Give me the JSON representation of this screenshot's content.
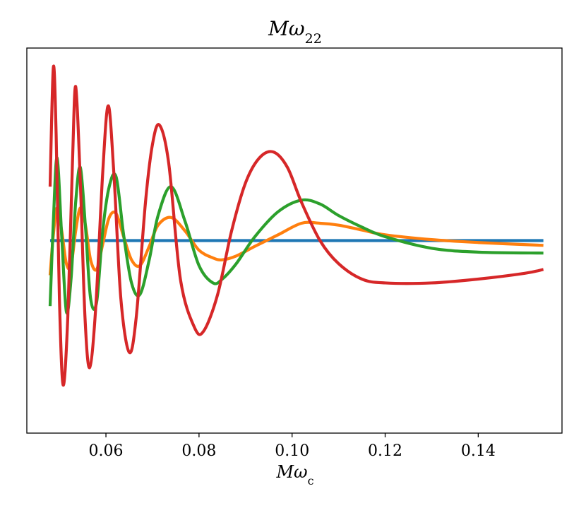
{
  "chart_data": {
    "type": "line",
    "title": "Mω",
    "title_subscript": "22",
    "xlabel": "Mω",
    "xlabel_subscript": "c",
    "ylabel": "",
    "xlim": [
      0.043,
      0.158
    ],
    "ylim": [
      -1.0,
      1.0
    ],
    "grid": false,
    "legend": "none",
    "x_ticks": [
      {
        "value": 0.06,
        "label": "0.06"
      },
      {
        "value": 0.08,
        "label": "0.08"
      },
      {
        "value": 0.1,
        "label": "0.10"
      },
      {
        "value": 0.12,
        "label": "0.12"
      },
      {
        "value": 0.14,
        "label": "0.14"
      }
    ],
    "series": [
      {
        "color": "#1f77b4",
        "points": [
          [
            0.048,
            0.0
          ],
          [
            0.154,
            0.0
          ]
        ]
      },
      {
        "color": "#ff7f0e",
        "points": [
          [
            0.048,
            -0.18
          ],
          [
            0.0487,
            0.03
          ],
          [
            0.0495,
            0.17
          ],
          [
            0.0505,
            0.05
          ],
          [
            0.0515,
            -0.12
          ],
          [
            0.0525,
            -0.13
          ],
          [
            0.0535,
            0.05
          ],
          [
            0.0545,
            0.17
          ],
          [
            0.0556,
            0.08
          ],
          [
            0.0567,
            -0.1
          ],
          [
            0.058,
            -0.15
          ],
          [
            0.0593,
            -0.02
          ],
          [
            0.0607,
            0.12
          ],
          [
            0.0622,
            0.14
          ],
          [
            0.0638,
            0.02
          ],
          [
            0.0655,
            -0.1
          ],
          [
            0.0673,
            -0.13
          ],
          [
            0.0693,
            -0.03
          ],
          [
            0.0712,
            0.08
          ],
          [
            0.074,
            0.12
          ],
          [
            0.077,
            0.05
          ],
          [
            0.08,
            -0.05
          ],
          [
            0.083,
            -0.09
          ],
          [
            0.085,
            -0.1
          ],
          [
            0.088,
            -0.08
          ],
          [
            0.092,
            -0.03
          ],
          [
            0.097,
            0.03
          ],
          [
            0.102,
            0.09
          ],
          [
            0.106,
            0.09
          ],
          [
            0.11,
            0.08
          ],
          [
            0.115,
            0.055
          ],
          [
            0.12,
            0.03
          ],
          [
            0.13,
            0.005
          ],
          [
            0.14,
            -0.01
          ],
          [
            0.154,
            -0.025
          ]
        ]
      },
      {
        "color": "#2ca02c",
        "points": [
          [
            0.048,
            -0.34
          ],
          [
            0.0487,
            0.1
          ],
          [
            0.0495,
            0.43
          ],
          [
            0.0505,
            0.02
          ],
          [
            0.0515,
            -0.37
          ],
          [
            0.0525,
            -0.2
          ],
          [
            0.0535,
            0.2
          ],
          [
            0.0545,
            0.38
          ],
          [
            0.0556,
            0.07
          ],
          [
            0.0567,
            -0.3
          ],
          [
            0.058,
            -0.32
          ],
          [
            0.0593,
            0.05
          ],
          [
            0.0607,
            0.28
          ],
          [
            0.0622,
            0.33
          ],
          [
            0.0638,
            0.03
          ],
          [
            0.0655,
            -0.22
          ],
          [
            0.0673,
            -0.28
          ],
          [
            0.0693,
            -0.1
          ],
          [
            0.0712,
            0.13
          ],
          [
            0.074,
            0.28
          ],
          [
            0.077,
            0.1
          ],
          [
            0.08,
            -0.13
          ],
          [
            0.083,
            -0.22
          ],
          [
            0.085,
            -0.2
          ],
          [
            0.088,
            -0.12
          ],
          [
            0.092,
            0.02
          ],
          [
            0.097,
            0.15
          ],
          [
            0.102,
            0.21
          ],
          [
            0.106,
            0.19
          ],
          [
            0.11,
            0.13
          ],
          [
            0.115,
            0.07
          ],
          [
            0.12,
            0.02
          ],
          [
            0.13,
            -0.04
          ],
          [
            0.14,
            -0.06
          ],
          [
            0.154,
            -0.065
          ]
        ]
      },
      {
        "color": "#d62728",
        "points": [
          [
            0.048,
            0.28
          ],
          [
            0.0487,
            0.9
          ],
          [
            0.0493,
            0.55
          ],
          [
            0.05,
            -0.3
          ],
          [
            0.0508,
            -0.75
          ],
          [
            0.0518,
            -0.4
          ],
          [
            0.0528,
            0.4
          ],
          [
            0.0535,
            0.8
          ],
          [
            0.0545,
            0.3
          ],
          [
            0.0555,
            -0.4
          ],
          [
            0.0565,
            -0.66
          ],
          [
            0.0578,
            -0.35
          ],
          [
            0.0593,
            0.35
          ],
          [
            0.0605,
            0.7
          ],
          [
            0.0617,
            0.35
          ],
          [
            0.0632,
            -0.3
          ],
          [
            0.065,
            -0.58
          ],
          [
            0.0665,
            -0.4
          ],
          [
            0.0685,
            0.2
          ],
          [
            0.07,
            0.5
          ],
          [
            0.0715,
            0.6
          ],
          [
            0.0735,
            0.4
          ],
          [
            0.076,
            -0.2
          ],
          [
            0.079,
            -0.45
          ],
          [
            0.081,
            -0.47
          ],
          [
            0.084,
            -0.28
          ],
          [
            0.087,
            0.05
          ],
          [
            0.09,
            0.3
          ],
          [
            0.093,
            0.43
          ],
          [
            0.096,
            0.46
          ],
          [
            0.099,
            0.38
          ],
          [
            0.102,
            0.2
          ],
          [
            0.106,
            0.0
          ],
          [
            0.11,
            -0.12
          ],
          [
            0.115,
            -0.2
          ],
          [
            0.12,
            -0.22
          ],
          [
            0.13,
            -0.22
          ],
          [
            0.14,
            -0.2
          ],
          [
            0.15,
            -0.17
          ],
          [
            0.154,
            -0.15
          ]
        ]
      }
    ]
  }
}
